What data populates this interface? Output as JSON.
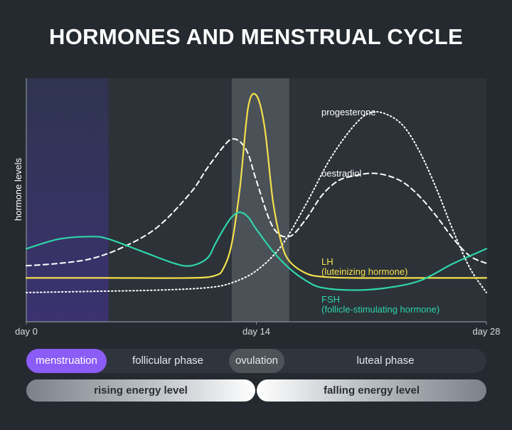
{
  "title": "HORMONES AND MENSTRUAL CYCLE",
  "colors": {
    "background": "#252a30",
    "lh": "#f4e04d",
    "fsh": "#2fd5a8",
    "curve_white": "#ffffff",
    "menstruation": "#8b5cf6"
  },
  "chart_data": {
    "type": "line",
    "ylabel": "hormone levels",
    "xlim": [
      0,
      28
    ],
    "ylim": [
      0,
      100
    ],
    "x_ticks": [
      {
        "value": 0,
        "label": "day 0"
      },
      {
        "value": 14,
        "label": "day 14"
      },
      {
        "value": 28,
        "label": "day 28"
      }
    ],
    "shaded_regions": [
      {
        "name": "menstruation",
        "x": [
          0,
          5
        ]
      },
      {
        "name": "ovulation",
        "x": [
          12.5,
          16
        ]
      }
    ],
    "series": [
      {
        "name": "progesterone",
        "style": "dotted",
        "x": [
          0,
          4,
          8,
          11,
          12.5,
          14,
          15.5,
          17,
          18.5,
          20,
          21,
          22,
          23,
          24,
          25,
          26,
          27,
          28
        ],
        "y": [
          12,
          12.5,
          13,
          14,
          16,
          21,
          31,
          48,
          67,
          81,
          86,
          85,
          80,
          69,
          54,
          37,
          22,
          12
        ]
      },
      {
        "name": "oestradiol",
        "label_lines": [
          "oestradiol"
        ],
        "style": "dashed",
        "x": [
          0,
          2,
          4,
          6,
          8,
          10,
          11,
          12,
          12.5,
          13,
          13.5,
          14,
          15,
          16,
          17,
          18,
          19,
          20,
          21,
          22,
          23,
          24,
          25,
          26,
          27,
          28
        ],
        "y": [
          23,
          24,
          26,
          31,
          39,
          53,
          63,
          72,
          75,
          74,
          69,
          58,
          39,
          35,
          42,
          52,
          58,
          60,
          61,
          60,
          57,
          51,
          43,
          34,
          27,
          24
        ],
        "label_x": 18
      },
      {
        "name": "LH",
        "label_lines": [
          "LH",
          "(luteinizing hormone)"
        ],
        "style": "solid",
        "x": [
          0,
          5,
          10,
          11.5,
          12,
          12.5,
          13,
          13.5,
          14,
          14.5,
          15,
          15.5,
          16,
          17,
          18,
          20,
          24,
          28
        ],
        "y": [
          18,
          18,
          18,
          19,
          22,
          32,
          55,
          88,
          93,
          80,
          50,
          33,
          25,
          20,
          18.5,
          18,
          18,
          18
        ]
      },
      {
        "name": "FSH",
        "label_lines": [
          "FSH",
          "(follicle-stimulating hormone)"
        ],
        "style": "solid",
        "x": [
          0,
          2,
          4,
          5,
          7,
          9,
          10,
          11,
          11.5,
          12,
          12.5,
          13,
          13.5,
          14,
          15,
          16,
          17,
          18,
          20,
          22,
          24,
          26,
          28
        ],
        "y": [
          30,
          34,
          35,
          34,
          29,
          24,
          23,
          26,
          32,
          38,
          43,
          45,
          43,
          38,
          29,
          22,
          17,
          14,
          13,
          14,
          17,
          24,
          30
        ]
      }
    ]
  },
  "phases": [
    "menstruation",
    "follicular phase",
    "ovulation",
    "luteal phase"
  ],
  "energy": [
    "rising energy level",
    "falling energy level"
  ]
}
